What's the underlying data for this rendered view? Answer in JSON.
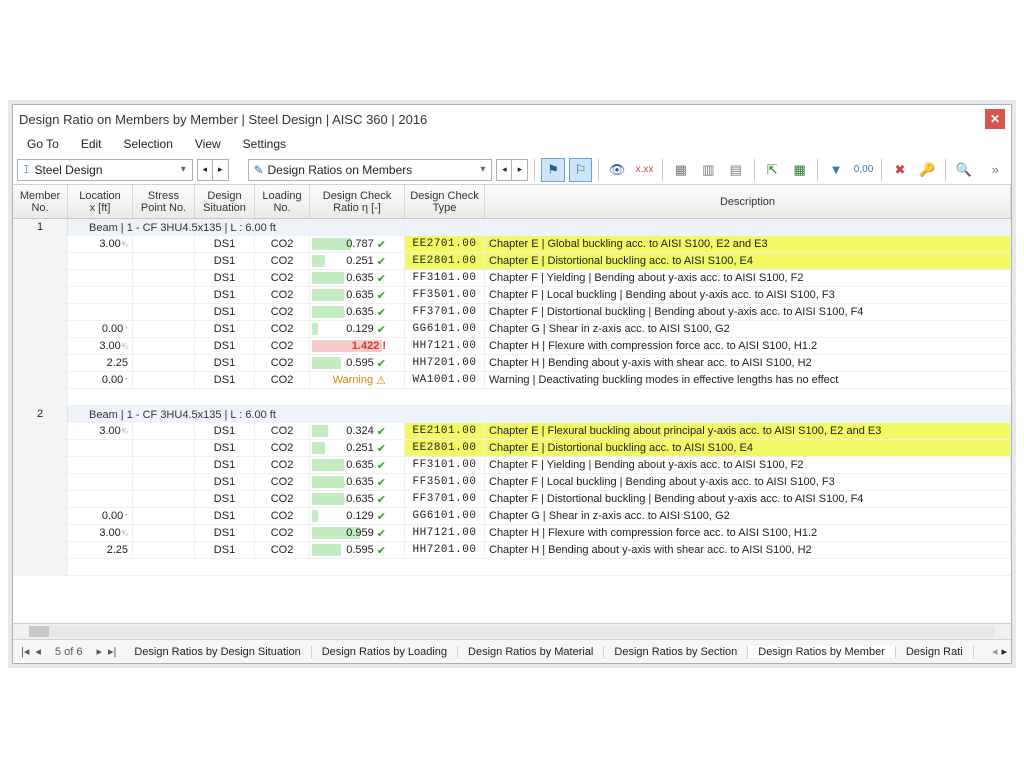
{
  "title": "Design Ratio on Members by Member | Steel Design | AISC 360 | 2016",
  "menu": [
    "Go To",
    "Edit",
    "Selection",
    "View",
    "Settings"
  ],
  "combo1": "Steel Design",
  "combo2": "Design Ratios on Members",
  "columns": {
    "member": [
      "Member",
      "No."
    ],
    "location": [
      "Location",
      "x [ft]"
    ],
    "stress": [
      "Stress",
      "Point No."
    ],
    "ds": [
      "Design",
      "Situation"
    ],
    "loading": [
      "Loading",
      "No."
    ],
    "ratio": [
      "Design Check",
      "Ratio η [-]"
    ],
    "type": [
      "Design Check",
      "Type"
    ],
    "desc": [
      "",
      "Description"
    ]
  },
  "groups": [
    {
      "no": "1",
      "header": "Beam | 1 - CF 3HU4.5x135 | L : 6.00 ft",
      "rows": [
        {
          "loc": "3.00",
          "sub": "¹⁄₂",
          "ds": "DS1",
          "load": "CO2",
          "ratio": "0.787",
          "status": "ok",
          "bar": 0.55,
          "code": "EE2701.00",
          "desc": "Chapter E | Global buckling acc. to AISI S100, E2 and E3",
          "hl": true
        },
        {
          "loc": "",
          "sub": "",
          "ds": "DS1",
          "load": "CO2",
          "ratio": "0.251",
          "status": "ok",
          "bar": 0.18,
          "code": "EE2801.00",
          "desc": "Chapter E | Distortional buckling acc. to AISI S100, E4",
          "hl": true
        },
        {
          "loc": "",
          "sub": "",
          "ds": "DS1",
          "load": "CO2",
          "ratio": "0.635",
          "status": "ok",
          "bar": 0.45,
          "code": "FF3101.00",
          "desc": "Chapter F | Yielding | Bending about y-axis acc. to AISI S100, F2"
        },
        {
          "loc": "",
          "sub": "",
          "ds": "DS1",
          "load": "CO2",
          "ratio": "0.635",
          "status": "ok",
          "bar": 0.45,
          "code": "FF3501.00",
          "desc": "Chapter F | Local buckling | Bending about y-axis acc. to AISI S100, F3"
        },
        {
          "loc": "",
          "sub": "",
          "ds": "DS1",
          "load": "CO2",
          "ratio": "0.635",
          "status": "ok",
          "bar": 0.45,
          "code": "FF3701.00",
          "desc": "Chapter F | Distortional buckling | Bending about y-axis acc. to AISI S100, F4"
        },
        {
          "loc": "0.00",
          "sub": "⁺",
          "ds": "DS1",
          "load": "CO2",
          "ratio": "0.129",
          "status": "ok",
          "bar": 0.09,
          "code": "GG6101.00",
          "desc": "Chapter G | Shear in z-axis acc. to AISI S100, G2"
        },
        {
          "loc": "3.00",
          "sub": "¹⁄₂",
          "ds": "DS1",
          "load": "CO2",
          "ratio": "1.422",
          "status": "fail",
          "bar": 1.0,
          "code": "HH7121.00",
          "desc": "Chapter H | Flexure with compression force acc. to AISI S100, H1.2"
        },
        {
          "loc": "2.25",
          "sub": "",
          "ds": "DS1",
          "load": "CO2",
          "ratio": "0.595",
          "status": "ok",
          "bar": 0.42,
          "code": "HH7201.00",
          "desc": "Chapter H | Bending about y-axis with shear acc. to AISI S100, H2"
        },
        {
          "loc": "0.00",
          "sub": "⁺",
          "ds": "DS1",
          "load": "CO2",
          "ratio": "Warning",
          "status": "warn",
          "bar": 0,
          "code": "WA1001.00",
          "desc": "Warning | Deactivating buckling modes in effective lengths has no effect"
        }
      ]
    },
    {
      "no": "2",
      "header": "Beam | 1 - CF 3HU4.5x135 | L : 6.00 ft",
      "rows": [
        {
          "loc": "3.00",
          "sub": "¹⁄₂",
          "ds": "DS1",
          "load": "CO2",
          "ratio": "0.324",
          "status": "ok",
          "bar": 0.23,
          "code": "EE2101.00",
          "desc": "Chapter E | Flexural buckling about principal y-axis acc. to AISI S100, E2 and E3",
          "hl": true
        },
        {
          "loc": "",
          "sub": "",
          "ds": "DS1",
          "load": "CO2",
          "ratio": "0.251",
          "status": "ok",
          "bar": 0.18,
          "code": "EE2801.00",
          "desc": "Chapter E | Distortional buckling acc. to AISI S100, E4",
          "hl": true
        },
        {
          "loc": "",
          "sub": "",
          "ds": "DS1",
          "load": "CO2",
          "ratio": "0.635",
          "status": "ok",
          "bar": 0.45,
          "code": "FF3101.00",
          "desc": "Chapter F | Yielding | Bending about y-axis acc. to AISI S100, F2"
        },
        {
          "loc": "",
          "sub": "",
          "ds": "DS1",
          "load": "CO2",
          "ratio": "0.635",
          "status": "ok",
          "bar": 0.45,
          "code": "FF3501.00",
          "desc": "Chapter F | Local buckling | Bending about y-axis acc. to AISI S100, F3"
        },
        {
          "loc": "",
          "sub": "",
          "ds": "DS1",
          "load": "CO2",
          "ratio": "0.635",
          "status": "ok",
          "bar": 0.45,
          "code": "FF3701.00",
          "desc": "Chapter F | Distortional buckling | Bending about y-axis acc. to AISI S100, F4"
        },
        {
          "loc": "0.00",
          "sub": "⁺",
          "ds": "DS1",
          "load": "CO2",
          "ratio": "0.129",
          "status": "ok",
          "bar": 0.09,
          "code": "GG6101.00",
          "desc": "Chapter G | Shear in z-axis acc. to AISI S100, G2"
        },
        {
          "loc": "3.00",
          "sub": "¹⁄₂",
          "ds": "DS1",
          "load": "CO2",
          "ratio": "0.959",
          "status": "ok",
          "bar": 0.68,
          "code": "HH7121.00",
          "desc": "Chapter H | Flexure with compression force acc. to AISI S100, H1.2"
        },
        {
          "loc": "2.25",
          "sub": "",
          "ds": "DS1",
          "load": "CO2",
          "ratio": "0.595",
          "status": "ok",
          "bar": 0.42,
          "code": "HH7201.00",
          "desc": "Chapter H | Bending about y-axis with shear acc. to AISI S100, H2"
        }
      ]
    }
  ],
  "pager": "5 of 6",
  "bottom_tabs": [
    "Design Ratios by Design Situation",
    "Design Ratios by Loading",
    "Design Ratios by Material",
    "Design Ratios by Section",
    "Design Ratios by Member",
    "Design Rati"
  ],
  "active_tab": 4
}
